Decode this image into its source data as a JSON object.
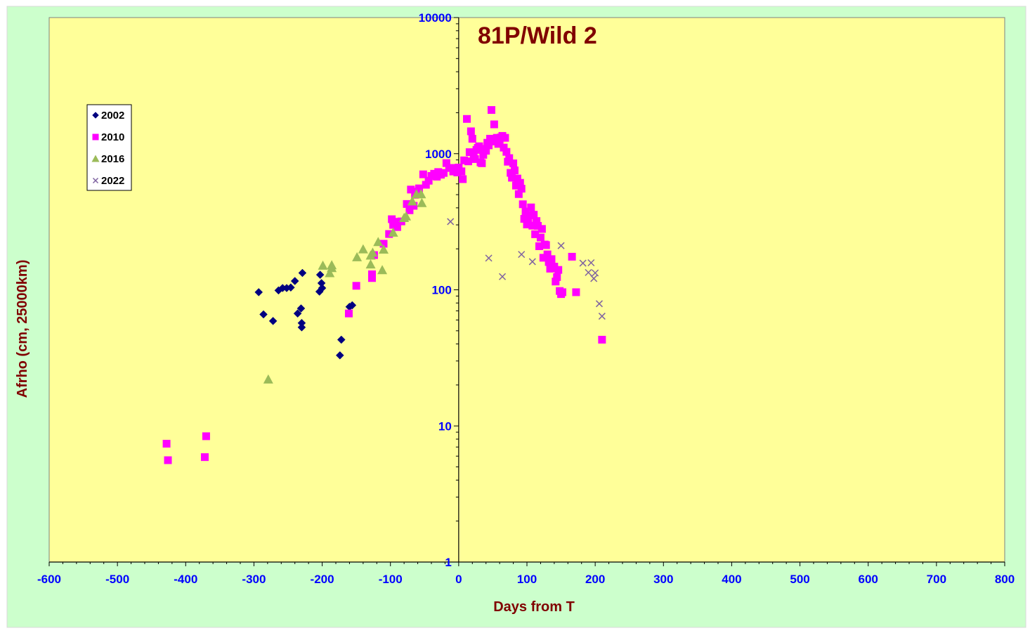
{
  "chart_data": {
    "type": "scatter",
    "title": "81P/Wild 2",
    "xlabel": "Days from  T",
    "ylabel": "Afrho (cm, 25000km)",
    "xlim": [
      -600,
      800
    ],
    "ylim": [
      1,
      10000
    ],
    "yscale": "log",
    "x_ticks": [
      "-600",
      "-500",
      "-400",
      "-300",
      "-200",
      "-100",
      "0",
      "100",
      "200",
      "300",
      "400",
      "500",
      "600",
      "700",
      "800"
    ],
    "y_ticks": [
      "1",
      "10",
      "100",
      "1000",
      "10000"
    ],
    "grid": false,
    "legend_position": "top-left",
    "colors": {
      "outer_background": "#ccffcc",
      "plot_background": "#ffff99",
      "tick_label": "#0000ff",
      "title": "#800000"
    },
    "series": [
      {
        "name": "2002",
        "marker": "diamond",
        "color": "#000080",
        "points": [
          [
            -293,
            96
          ],
          [
            -286,
            66
          ],
          [
            -272,
            59
          ],
          [
            -264,
            99
          ],
          [
            -258,
            103
          ],
          [
            -252,
            103
          ],
          [
            -246,
            104
          ],
          [
            -240,
            116
          ],
          [
            -236,
            67
          ],
          [
            -231,
            73
          ],
          [
            -230,
            57
          ],
          [
            -230,
            53
          ],
          [
            -229,
            133
          ],
          [
            -204,
            97
          ],
          [
            -203,
            129
          ],
          [
            -201,
            112
          ],
          [
            -200,
            103
          ],
          [
            -172,
            43
          ],
          [
            -174,
            33
          ],
          [
            -160,
            75
          ],
          [
            -156,
            77
          ]
        ]
      },
      {
        "name": "2010",
        "marker": "square",
        "color": "#ff00ff",
        "points": [
          [
            -428,
            7.4
          ],
          [
            -426,
            5.6
          ],
          [
            -372,
            5.9
          ],
          [
            -370,
            8.4
          ],
          [
            -161,
            67
          ],
          [
            -150,
            107
          ],
          [
            -127,
            130
          ],
          [
            -127,
            122
          ],
          [
            -124,
            180
          ],
          [
            -110,
            218
          ],
          [
            -102,
            257
          ],
          [
            -98,
            330
          ],
          [
            -96,
            300
          ],
          [
            -93,
            316
          ],
          [
            -90,
            289
          ],
          [
            -84,
            318
          ],
          [
            -76,
            427
          ],
          [
            -72,
            384
          ],
          [
            -70,
            545
          ],
          [
            -66,
            414
          ],
          [
            -64,
            499
          ],
          [
            -62,
            527
          ],
          [
            -58,
            556
          ],
          [
            -52,
            705
          ],
          [
            -48,
            591
          ],
          [
            -44,
            633
          ],
          [
            -40,
            686
          ],
          [
            -36,
            712
          ],
          [
            -32,
            678
          ],
          [
            -30,
            733
          ],
          [
            -26,
            701
          ],
          [
            -22,
            722
          ],
          [
            -18,
            853
          ],
          [
            -14,
            785
          ],
          [
            -10,
            786
          ],
          [
            -8,
            740
          ],
          [
            -6,
            771
          ],
          [
            -2,
            728
          ],
          [
            0,
            791
          ],
          [
            4,
            742
          ],
          [
            6,
            650
          ],
          [
            8,
            893
          ],
          [
            12,
            1800
          ],
          [
            14,
            878
          ],
          [
            16,
            1026
          ],
          [
            18,
            1460
          ],
          [
            20,
            1287
          ],
          [
            22,
            940
          ],
          [
            24,
            913
          ],
          [
            26,
            1066
          ],
          [
            28,
            1105
          ],
          [
            30,
            1133
          ],
          [
            32,
            863
          ],
          [
            34,
            851
          ],
          [
            36,
            981
          ],
          [
            38,
            1085
          ],
          [
            40,
            1051
          ],
          [
            42,
            1203
          ],
          [
            44,
            1152
          ],
          [
            46,
            1288
          ],
          [
            48,
            2094
          ],
          [
            50,
            1229
          ],
          [
            52,
            1642
          ],
          [
            54,
            1277
          ],
          [
            56,
            1308
          ],
          [
            58,
            1180
          ],
          [
            60,
            1262
          ],
          [
            62,
            1317
          ],
          [
            64,
            1351
          ],
          [
            66,
            1108
          ],
          [
            68,
            1308
          ],
          [
            70,
            1031
          ],
          [
            72,
            873
          ],
          [
            74,
            928
          ],
          [
            76,
            723
          ],
          [
            78,
            666
          ],
          [
            80,
            849
          ],
          [
            82,
            754
          ],
          [
            84,
            583
          ],
          [
            86,
            657
          ],
          [
            88,
            505
          ],
          [
            90,
            611
          ],
          [
            92,
            553
          ],
          [
            94,
            425
          ],
          [
            96,
            332
          ],
          [
            98,
            376
          ],
          [
            100,
            302
          ],
          [
            102,
            336
          ],
          [
            104,
            353
          ],
          [
            106,
            403
          ],
          [
            108,
            296
          ],
          [
            110,
            356
          ],
          [
            112,
            256
          ],
          [
            114,
            320
          ],
          [
            116,
            295
          ],
          [
            118,
            209
          ],
          [
            120,
            242
          ],
          [
            122,
            280
          ],
          [
            124,
            172
          ],
          [
            126,
            215
          ],
          [
            128,
            213
          ],
          [
            130,
            182
          ],
          [
            132,
            160
          ],
          [
            134,
            143
          ],
          [
            136,
            168
          ],
          [
            138,
            144
          ],
          [
            140,
            148
          ],
          [
            142,
            115
          ],
          [
            144,
            124
          ],
          [
            146,
            140
          ],
          [
            148,
            98
          ],
          [
            150,
            93
          ],
          [
            152,
            96
          ],
          [
            166,
            175
          ],
          [
            172,
            96
          ],
          [
            210,
            43
          ]
        ]
      },
      {
        "name": "2016",
        "marker": "triangle",
        "color": "#9bbb59",
        "points": [
          [
            -279,
            22
          ],
          [
            -199,
            151
          ],
          [
            -189,
            133
          ],
          [
            -186,
            145
          ],
          [
            -186,
            152
          ],
          [
            -149,
            174
          ],
          [
            -140,
            199
          ],
          [
            -129,
            154
          ],
          [
            -129,
            179
          ],
          [
            -126,
            188
          ],
          [
            -118,
            225
          ],
          [
            -112,
            140
          ],
          [
            -110,
            198
          ],
          [
            -96,
            264
          ],
          [
            -80,
            338
          ],
          [
            -77,
            347
          ],
          [
            -68,
            448
          ],
          [
            -62,
            505
          ],
          [
            -55,
            505
          ],
          [
            -54,
            435
          ]
        ]
      },
      {
        "name": "2022",
        "marker": "x",
        "color": "#7f63a1",
        "points": [
          [
            -12,
            317
          ],
          [
            44,
            171
          ],
          [
            64,
            125
          ],
          [
            92,
            182
          ],
          [
            108,
            161
          ],
          [
            150,
            211
          ],
          [
            182,
            157
          ],
          [
            190,
            134
          ],
          [
            194,
            158
          ],
          [
            198,
            121
          ],
          [
            200,
            133
          ],
          [
            206,
            79
          ],
          [
            210,
            64
          ]
        ]
      }
    ]
  }
}
